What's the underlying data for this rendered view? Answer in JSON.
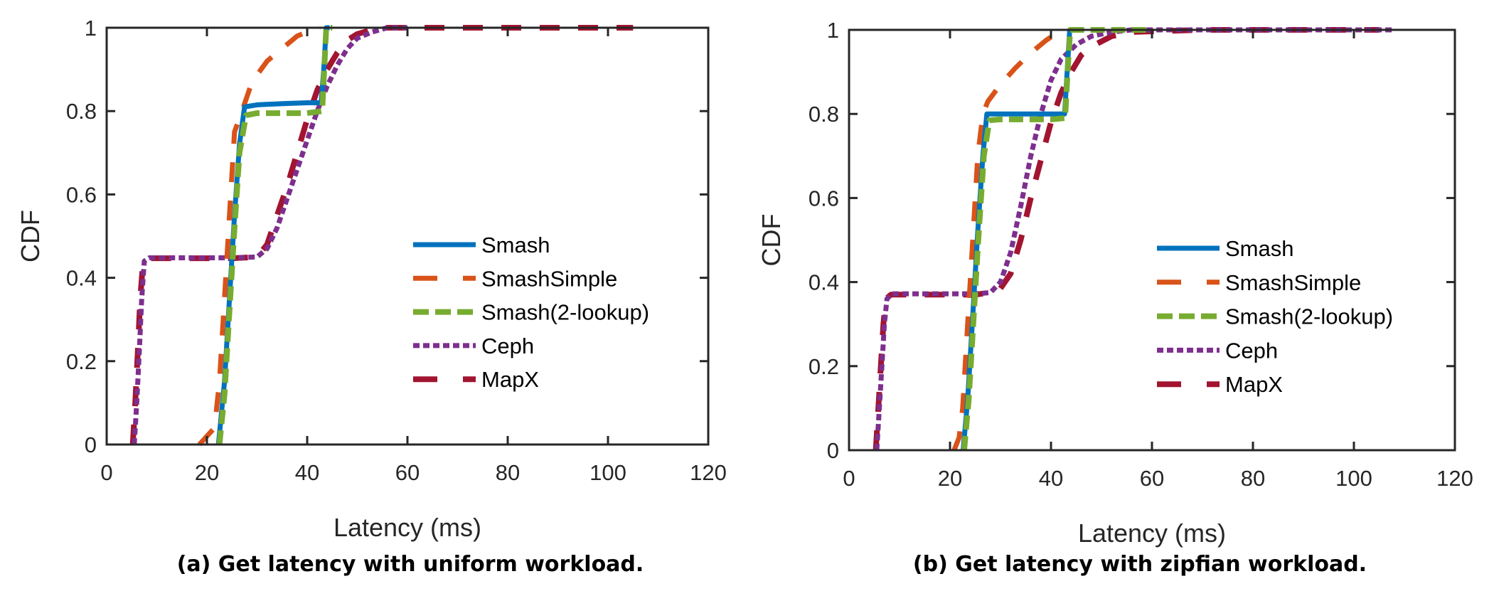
{
  "chart_data": [
    {
      "type": "line",
      "title": "(a) Get latency with uniform workload.",
      "xlabel": "Latency (ms)",
      "ylabel": "CDF",
      "xlim": [
        0,
        120
      ],
      "ylim": [
        0,
        1
      ],
      "xticks": [
        "0",
        "20",
        "40",
        "60",
        "80",
        "100",
        "120"
      ],
      "yticks": [
        "0",
        "0.2",
        "0.4",
        "0.6",
        "0.8",
        "1"
      ],
      "grid": false,
      "legend_position": "center-right",
      "series": [
        {
          "name": "Smash",
          "color": "#0072BD",
          "style": "solid",
          "x": [
            22.3,
            23.5,
            24.5,
            25.5,
            26.5,
            27.5,
            30,
            35,
            40,
            42.8,
            43.3,
            43.8,
            44.5
          ],
          "y": [
            0,
            0.15,
            0.35,
            0.55,
            0.72,
            0.81,
            0.815,
            0.818,
            0.82,
            0.82,
            0.9,
            1.0,
            1.0
          ]
        },
        {
          "name": "SmashSimple",
          "color": "#D95319",
          "style": "dash",
          "x": [
            18.5,
            20,
            21.5,
            22.5,
            23.5,
            24.5,
            25.5,
            27,
            29,
            32,
            35,
            38,
            41,
            42.5
          ],
          "y": [
            0,
            0.02,
            0.04,
            0.15,
            0.35,
            0.55,
            0.75,
            0.8,
            0.87,
            0.92,
            0.95,
            0.98,
            0.995,
            1.0
          ]
        },
        {
          "name": "Smash(2-lookup)",
          "color": "#77AC30",
          "style": "dashdash",
          "x": [
            22.5,
            23.5,
            24.5,
            25.5,
            26.5,
            27.8,
            30,
            35,
            40,
            43,
            43.4,
            43.8,
            45
          ],
          "y": [
            0,
            0.12,
            0.32,
            0.52,
            0.7,
            0.79,
            0.795,
            0.795,
            0.795,
            0.8,
            0.9,
            1.0,
            1.0
          ]
        },
        {
          "name": "Ceph",
          "color": "#7E2F8E",
          "style": "dot",
          "x": [
            5.5,
            6,
            6.5,
            7,
            7.5,
            8.5,
            15,
            25,
            30,
            32,
            34,
            36,
            38,
            40,
            42,
            44,
            46,
            48,
            50,
            53,
            56,
            60
          ],
          "y": [
            0,
            0.1,
            0.22,
            0.35,
            0.44,
            0.448,
            0.448,
            0.448,
            0.45,
            0.47,
            0.52,
            0.59,
            0.66,
            0.73,
            0.8,
            0.86,
            0.91,
            0.95,
            0.975,
            0.99,
            1.0,
            1.0
          ]
        },
        {
          "name": "MapX",
          "color": "#A2142F",
          "style": "longdash",
          "x": [
            5.2,
            5.7,
            6.2,
            6.7,
            7.2,
            8,
            15,
            25,
            30,
            32,
            34,
            36,
            38,
            40,
            42,
            44,
            46,
            48,
            50,
            53,
            56,
            60,
            80,
            105
          ],
          "y": [
            0,
            0.1,
            0.22,
            0.35,
            0.43,
            0.447,
            0.447,
            0.447,
            0.45,
            0.48,
            0.55,
            0.62,
            0.7,
            0.78,
            0.85,
            0.9,
            0.94,
            0.97,
            0.985,
            0.995,
            1.0,
            1.0,
            1.0,
            1.0
          ]
        }
      ]
    },
    {
      "type": "line",
      "title": "(b) Get latency with zipfian workload.",
      "xlabel": "Latency (ms)",
      "ylabel": "CDF",
      "xlim": [
        0,
        120
      ],
      "ylim": [
        0,
        1
      ],
      "xticks": [
        "0",
        "20",
        "40",
        "60",
        "80",
        "100",
        "120"
      ],
      "yticks": [
        "0",
        "0.2",
        "0.4",
        "0.6",
        "0.8",
        "1"
      ],
      "grid": false,
      "legend_position": "center-right",
      "series": [
        {
          "name": "Smash",
          "color": "#0072BD",
          "style": "solid",
          "x": [
            22.6,
            23.5,
            24.5,
            25.5,
            26.5,
            27.3,
            30,
            35,
            40,
            42.7,
            43.2,
            43.7,
            44.5
          ],
          "y": [
            0,
            0.12,
            0.32,
            0.52,
            0.7,
            0.8,
            0.8,
            0.8,
            0.8,
            0.8,
            0.9,
            1.0,
            1.0
          ]
        },
        {
          "name": "SmashSimple",
          "color": "#D95319",
          "style": "dash",
          "x": [
            20.8,
            21.8,
            22.5,
            23.5,
            24.5,
            25.5,
            26.5,
            27.5,
            30,
            33,
            36,
            39,
            41.5,
            43
          ],
          "y": [
            0,
            0.03,
            0.1,
            0.3,
            0.5,
            0.7,
            0.8,
            0.83,
            0.87,
            0.91,
            0.945,
            0.975,
            0.995,
            1.0
          ]
        },
        {
          "name": "Smash(2-lookup)",
          "color": "#77AC30",
          "style": "dashdash",
          "x": [
            22.8,
            23.7,
            24.7,
            25.7,
            26.7,
            27.8,
            30,
            35,
            40,
            42.8,
            43.3,
            43.8,
            46,
            60
          ],
          "y": [
            0,
            0.12,
            0.32,
            0.52,
            0.7,
            0.785,
            0.787,
            0.787,
            0.787,
            0.79,
            0.9,
            1.0,
            1.0,
            1.0
          ]
        },
        {
          "name": "Ceph",
          "color": "#7E2F8E",
          "style": "dot",
          "x": [
            5.5,
            6,
            6.5,
            7,
            7.5,
            8.5,
            15,
            25,
            28,
            30,
            32,
            34,
            36,
            38,
            40,
            42,
            45,
            48,
            52,
            56,
            70,
            90,
            108
          ],
          "y": [
            0,
            0.1,
            0.2,
            0.3,
            0.36,
            0.372,
            0.372,
            0.372,
            0.375,
            0.4,
            0.47,
            0.58,
            0.7,
            0.8,
            0.88,
            0.93,
            0.965,
            0.985,
            0.995,
            1.0,
            1.0,
            1.0,
            1.0
          ]
        },
        {
          "name": "MapX",
          "color": "#A2142F",
          "style": "longdash",
          "x": [
            5.3,
            5.8,
            6.3,
            6.8,
            7.3,
            8.3,
            15,
            25,
            28,
            30,
            32,
            34,
            36,
            38,
            40,
            42,
            44,
            46,
            48,
            52,
            56,
            70,
            90,
            105
          ],
          "y": [
            0,
            0.1,
            0.2,
            0.3,
            0.36,
            0.37,
            0.37,
            0.37,
            0.375,
            0.385,
            0.42,
            0.5,
            0.6,
            0.69,
            0.78,
            0.85,
            0.9,
            0.94,
            0.96,
            0.985,
            0.995,
            1.0,
            1.0,
            1.0
          ]
        }
      ]
    }
  ]
}
